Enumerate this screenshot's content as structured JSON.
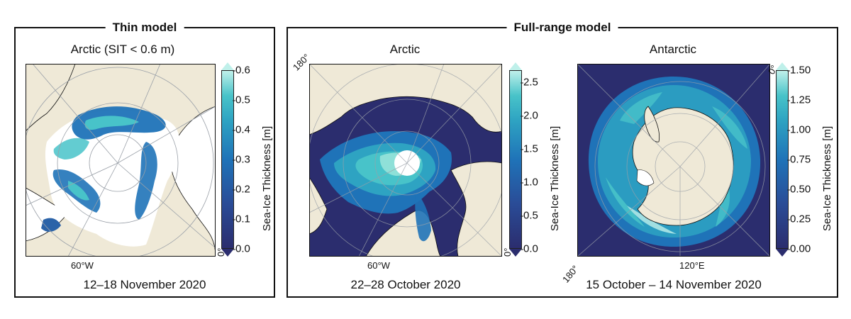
{
  "panels": {
    "thin": {
      "title": "Thin model"
    },
    "full": {
      "title": "Full-range model"
    }
  },
  "maps": [
    {
      "id": "thin-arctic",
      "title": "Arctic (SIT < 0.6 m)",
      "date": "12–18 November 2020",
      "lon_labels": [
        "60°W",
        "0°"
      ],
      "colorbar": {
        "label": "Sea-Ice Thickness [m]",
        "ticks": [
          "0.0",
          "0.1",
          "0.2",
          "0.3",
          "0.4",
          "0.5",
          "0.6"
        ],
        "min": 0,
        "max": 0.6
      }
    },
    {
      "id": "full-arctic",
      "title": "Arctic",
      "date": "22–28 October 2020",
      "lon_labels": [
        "180°",
        "60°W",
        "0°"
      ],
      "colorbar": {
        "label": "Sea-Ice Thickness [m]",
        "ticks": [
          "0.0",
          "0.5",
          "1.0",
          "1.5",
          "2.0",
          "2.5"
        ],
        "min": 0,
        "max": 2.5
      }
    },
    {
      "id": "full-antarctic",
      "title": "Antarctic",
      "date": "15 October – 14 November 2020",
      "lon_labels": [
        "0°",
        "180°",
        "120°E"
      ],
      "colorbar": {
        "label": "Sea-Ice Thickness [m]",
        "ticks": [
          "0.00",
          "0.25",
          "0.50",
          "0.75",
          "1.00",
          "1.25",
          "1.50"
        ],
        "min": 0,
        "max": 1.5
      }
    }
  ],
  "colors": {
    "land": "#efe9d7",
    "ocean_dark": "#2b2d6e",
    "ice_mid": "#1f73b8",
    "ice_light": "#48c3c9",
    "ice_max": "#bff0ea",
    "grid": "#9aa0a8",
    "frame": "#111111"
  }
}
